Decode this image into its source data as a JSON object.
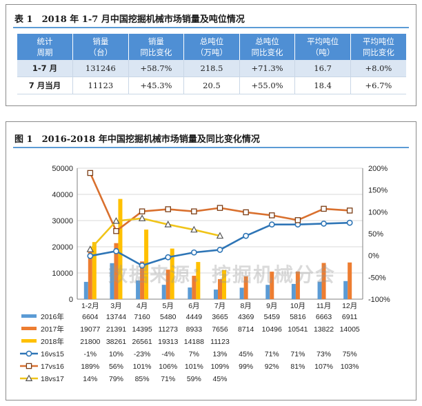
{
  "table": {
    "title": "表 1　2018 年 1-7 月中国挖掘机械市场销量及吨位情况",
    "headers": [
      [
        "统计",
        "周期"
      ],
      [
        "销量",
        "（台）"
      ],
      [
        "销量",
        "同比变化"
      ],
      [
        "总吨位",
        "（万吨）"
      ],
      [
        "总吨位",
        "同比变化"
      ],
      [
        "平均吨位",
        "（吨）"
      ],
      [
        "平均吨位",
        "同比变化"
      ]
    ],
    "rows": [
      [
        "1-7 月",
        "131246",
        "+58.7%",
        "218.5",
        "+71.3%",
        "16.7",
        "+8.0%"
      ],
      [
        "7 月当月",
        "11123",
        "+45.3%",
        "20.5",
        "+55.0%",
        "18.4",
        "+6.7%"
      ]
    ]
  },
  "chart_title": "图 1　2016-2018 年中国挖掘机械市场销量及同比变化情况",
  "watermark": "数据来源：挖掘机械分会",
  "chart_data": {
    "type": "bar",
    "categories": [
      "1-2月",
      "3月",
      "4月",
      "5月",
      "6月",
      "7月",
      "8月",
      "9月",
      "10月",
      "11月",
      "12月"
    ],
    "y_left": {
      "ylim": [
        0,
        50000
      ],
      "ticks": [
        "0",
        "10000",
        "20000",
        "30000",
        "40000",
        "50000"
      ]
    },
    "y_right": {
      "ylim": [
        -100,
        200
      ],
      "ticks": [
        "-100%",
        "-50%",
        "0%",
        "50%",
        "100%",
        "150%",
        "200%"
      ]
    },
    "bar_series": [
      {
        "name": "2016年",
        "color": "#5b9bd5",
        "values": [
          6604,
          13744,
          7160,
          5480,
          4449,
          3665,
          4369,
          5459,
          5816,
          6663,
          6911
        ]
      },
      {
        "name": "2017年",
        "color": "#ed7d31",
        "values": [
          19077,
          21391,
          14395,
          11273,
          8933,
          7656,
          8714,
          10496,
          10541,
          13822,
          14005
        ]
      },
      {
        "name": "2018年",
        "color": "#ffc000",
        "values": [
          21800,
          38261,
          26561,
          19313,
          14188,
          11123,
          null,
          null,
          null,
          null,
          null
        ]
      }
    ],
    "line_series": [
      {
        "name": "16vs15",
        "color": "#2e75b6",
        "marker": "circle",
        "values": [
          -1,
          10,
          -23,
          -4,
          7,
          13,
          45,
          71,
          71,
          73,
          75
        ],
        "labels": [
          "-1%",
          "10%",
          "-23%",
          "-4%",
          "7%",
          "13%",
          "45%",
          "71%",
          "71%",
          "73%",
          "75%"
        ]
      },
      {
        "name": "17vs16",
        "color": "#d9702e",
        "marker": "square",
        "values": [
          189,
          56,
          101,
          106,
          101,
          109,
          99,
          92,
          81,
          107,
          103
        ],
        "labels": [
          "189%",
          "56%",
          "101%",
          "106%",
          "101%",
          "109%",
          "99%",
          "92%",
          "81%",
          "107%",
          "103%"
        ]
      },
      {
        "name": "18vs17",
        "color": "#f0c419",
        "marker": "triangle",
        "values": [
          14,
          79,
          85,
          71,
          59,
          45,
          null,
          null,
          null,
          null,
          null
        ],
        "labels": [
          "14%",
          "79%",
          "85%",
          "71%",
          "59%",
          "45%",
          "",
          "",
          "",
          "",
          ""
        ]
      }
    ],
    "grid": true
  }
}
